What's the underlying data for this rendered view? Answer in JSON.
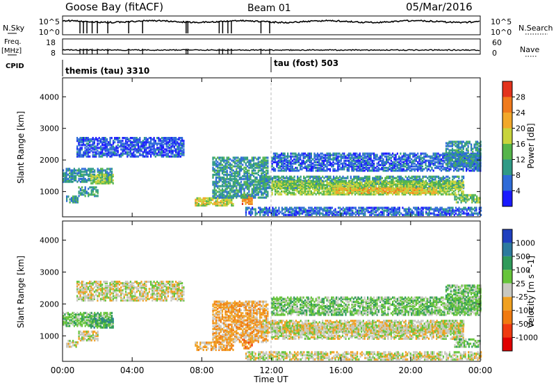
{
  "header": {
    "station": "Goose Bay (fitACF)",
    "beam": "Beam 01",
    "date": "05/Mar/2016"
  },
  "summary_panel": {
    "nsky_label": "N.Sky",
    "nsky_ticks": [
      "10^5",
      "10^0"
    ],
    "nsearch_label": "N.Search",
    "nsearch_ticks": [
      "10^5",
      "10^0"
    ],
    "freq_label": "Freq.",
    "freq_unit": "[MHz]",
    "freq_ticks": [
      "18",
      "8"
    ],
    "nave_label": "Nave",
    "nave_ticks": [
      "60",
      "0"
    ],
    "cpid_label": "CPID",
    "cpid_modes": [
      {
        "name": "themis (tau) 3310",
        "start_hour": 0
      },
      {
        "name": "tau (fost) 503",
        "start_hour": 12
      }
    ]
  },
  "chart_data": [
    {
      "type": "heatmap",
      "name": "power",
      "ylabel": "Slant Range [km]",
      "y_ticks": [
        "1000",
        "2000",
        "3000",
        "4000"
      ],
      "ylim": [
        200,
        4600
      ],
      "xlim": [
        0,
        24
      ],
      "colorbar": {
        "label": "Power [dB]",
        "ticks": [
          "4",
          "8",
          "12",
          "16",
          "20",
          "24",
          "28"
        ],
        "colors": [
          "#1a1aff",
          "#2e6bd8",
          "#2f9a86",
          "#55b54a",
          "#c8d43c",
          "#f2a82a",
          "#f07a1c",
          "#e3331c"
        ]
      },
      "regions": [
        {
          "t0": 0.0,
          "t1": 2.8,
          "r0": 1300,
          "r1": 1750,
          "v": 9
        },
        {
          "t0": 1.6,
          "t1": 2.9,
          "r0": 1250,
          "r1": 1550,
          "v": 15
        },
        {
          "t0": 0.9,
          "t1": 2.0,
          "r0": 850,
          "r1": 1150,
          "v": 10
        },
        {
          "t0": 0.2,
          "t1": 0.9,
          "r0": 650,
          "r1": 850,
          "v": 10
        },
        {
          "t0": 0.8,
          "t1": 7.0,
          "r0": 2100,
          "r1": 2700,
          "v": 5
        },
        {
          "t0": 7.6,
          "t1": 9.8,
          "r0": 550,
          "r1": 800,
          "v": 18
        },
        {
          "t0": 10.3,
          "t1": 10.9,
          "r0": 600,
          "r1": 900,
          "v": 25
        },
        {
          "t0": 8.6,
          "t1": 11.8,
          "r0": 800,
          "r1": 2100,
          "v": 10
        },
        {
          "t0": 11.3,
          "t1": 23.0,
          "r0": 1100,
          "r1": 1500,
          "v": 10
        },
        {
          "t0": 12.0,
          "t1": 23.0,
          "r0": 900,
          "r1": 1350,
          "v": 16
        },
        {
          "t0": 15.5,
          "t1": 21.5,
          "r0": 950,
          "r1": 1100,
          "v": 21
        },
        {
          "t0": 12.0,
          "t1": 24.0,
          "r0": 1650,
          "r1": 2200,
          "v": 6
        },
        {
          "t0": 22.5,
          "t1": 24.0,
          "r0": 650,
          "r1": 900,
          "v": 14
        },
        {
          "t0": 10.5,
          "t1": 24.0,
          "r0": 250,
          "r1": 500,
          "v": 6
        },
        {
          "t0": 22.0,
          "t1": 24.0,
          "r0": 1800,
          "r1": 2600,
          "v": 9
        }
      ]
    },
    {
      "type": "heatmap",
      "name": "velocity",
      "ylabel": "Slant Range [km]",
      "xlabel": "Time UT",
      "x_ticks": [
        "00:00",
        "04:00",
        "08:00",
        "12:00",
        "16:00",
        "20:00",
        "00:00"
      ],
      "y_ticks": [
        "1000",
        "2000",
        "3000",
        "4000"
      ],
      "ylim": [
        200,
        4600
      ],
      "xlim": [
        0,
        24
      ],
      "colorbar": {
        "label": "Velocity [m s^-1]",
        "ticks": [
          "1000",
          "500",
          "100",
          "25",
          "-25",
          "-100",
          "-500",
          "-1000"
        ],
        "colors": [
          "#1f3fbf",
          "#2c7a9e",
          "#2f9a5a",
          "#66c43a",
          "#c8c8c0",
          "#f0a020",
          "#f07a10",
          "#f03a10",
          "#e00000"
        ]
      },
      "regions": [
        {
          "t0": 0.0,
          "t1": 2.8,
          "r0": 1300,
          "r1": 1750,
          "v": 3
        },
        {
          "t0": 1.6,
          "t1": 2.9,
          "r0": 1250,
          "r1": 1550,
          "v": 2
        },
        {
          "t0": 0.9,
          "t1": 2.0,
          "r0": 850,
          "r1": 1150,
          "v": 4
        },
        {
          "t0": 0.2,
          "t1": 0.9,
          "r0": 650,
          "r1": 850,
          "v": 4
        },
        {
          "t0": 0.8,
          "t1": 7.0,
          "r0": 2100,
          "r1": 2700,
          "v": 4
        },
        {
          "t0": 7.6,
          "t1": 9.8,
          "r0": 550,
          "r1": 800,
          "v": 5
        },
        {
          "t0": 10.3,
          "t1": 10.9,
          "r0": 600,
          "r1": 900,
          "v": 6
        },
        {
          "t0": 8.6,
          "t1": 11.8,
          "r0": 800,
          "r1": 2100,
          "v": 5
        },
        {
          "t0": 11.3,
          "t1": 23.0,
          "r0": 1100,
          "r1": 1500,
          "v": 4
        },
        {
          "t0": 12.0,
          "t1": 23.0,
          "r0": 900,
          "r1": 1350,
          "v": 4
        },
        {
          "t0": 12.0,
          "t1": 24.0,
          "r0": 1650,
          "r1": 2200,
          "v": 3
        },
        {
          "t0": 22.5,
          "t1": 24.0,
          "r0": 650,
          "r1": 900,
          "v": 3
        },
        {
          "t0": 10.5,
          "t1": 24.0,
          "r0": 250,
          "r1": 500,
          "v": 4
        },
        {
          "t0": 22.0,
          "t1": 24.0,
          "r0": 1800,
          "r1": 2600,
          "v": 3
        }
      ]
    }
  ],
  "colors": {
    "axes": "#000000",
    "guide_line": "#bbbbbb"
  }
}
